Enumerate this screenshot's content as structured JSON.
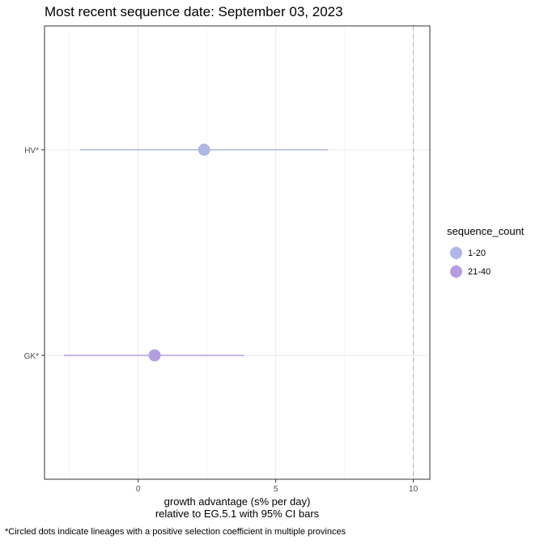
{
  "title": "Most recent sequence date: September 03, 2023",
  "caption": "*Circled dots indicate lineages with a positive selection coefficient in multiple provinces",
  "chart_data": {
    "type": "scatter",
    "orientation": "horizontal-dot-with-ci",
    "categories": [
      "GK*",
      "HV*"
    ],
    "points": [
      {
        "lineage": "HV*",
        "estimate": 2.4,
        "ci_low": -2.1,
        "ci_high": 6.9,
        "sequence_count": "1-20"
      },
      {
        "lineage": "GK*",
        "estimate": 0.6,
        "ci_low": -2.7,
        "ci_high": 3.85,
        "sequence_count": "21-40"
      }
    ],
    "xlabel_line1": "growth advantage (s% per day)",
    "xlabel_line2": "relative to  EG.5.1  with 95% CI bars",
    "ylabel": "",
    "xlim": [
      -3.4,
      10.6
    ],
    "xticks": [
      0,
      5,
      10
    ],
    "reference_line_x": 10,
    "grid": true,
    "legend": {
      "title": "sequence_count",
      "position": "right",
      "entries": [
        {
          "label": "1-20",
          "dot_color": "#b0b6e6",
          "bar_color": "#aab8d4"
        },
        {
          "label": "21-40",
          "dot_color": "#b39ee0",
          "bar_color": "#b39ee0"
        }
      ]
    }
  }
}
